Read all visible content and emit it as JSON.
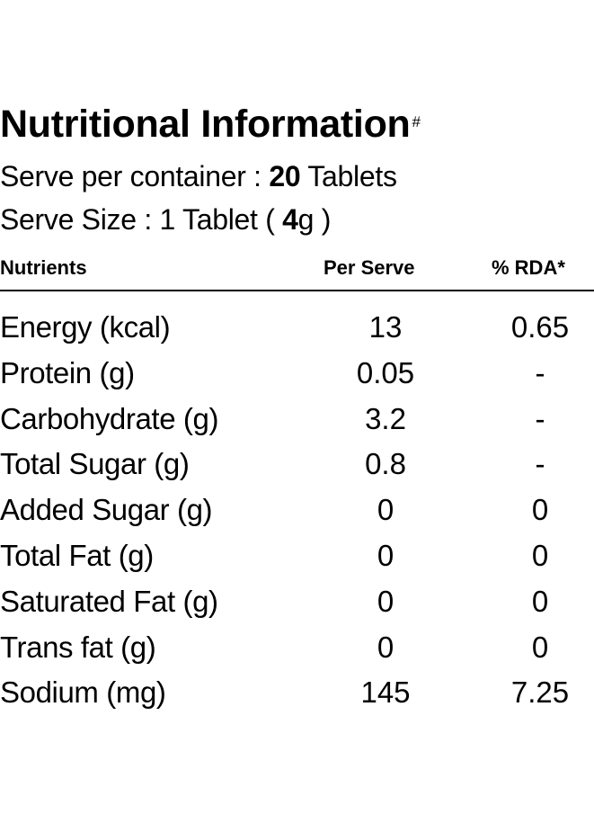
{
  "title": {
    "text": "Nutritional Information",
    "mark": "#"
  },
  "serving": {
    "container_label": "Serve per container : ",
    "container_count": "20",
    "container_unit": " Tablets",
    "size_label": "Serve Size :  1 Tablet ( ",
    "size_value": "4",
    "size_unit": "g )"
  },
  "table": {
    "headers": [
      "Nutrients",
      "Per Serve",
      "% RDA*"
    ],
    "rows": [
      {
        "nutrient": "Energy (kcal)",
        "per_serve": "13",
        "rda": "0.65"
      },
      {
        "nutrient": "Protein (g)",
        "per_serve": "0.05",
        "rda": "-"
      },
      {
        "nutrient": "Carbohydrate (g)",
        "per_serve": "3.2",
        "rda": "-"
      },
      {
        "nutrient": "Total Sugar (g)",
        "per_serve": "0.8",
        "rda": "-"
      },
      {
        "nutrient": "Added Sugar (g)",
        "per_serve": "0",
        "rda": "0"
      },
      {
        "nutrient": "Total Fat (g)",
        "per_serve": "0",
        "rda": "0"
      },
      {
        "nutrient": "Saturated Fat (g)",
        "per_serve": "0",
        "rda": "0"
      },
      {
        "nutrient": "Trans fat (g)",
        "per_serve": "0",
        "rda": "0"
      },
      {
        "nutrient": "Sodium (mg)",
        "per_serve": "145",
        "rda": "7.25"
      }
    ]
  }
}
